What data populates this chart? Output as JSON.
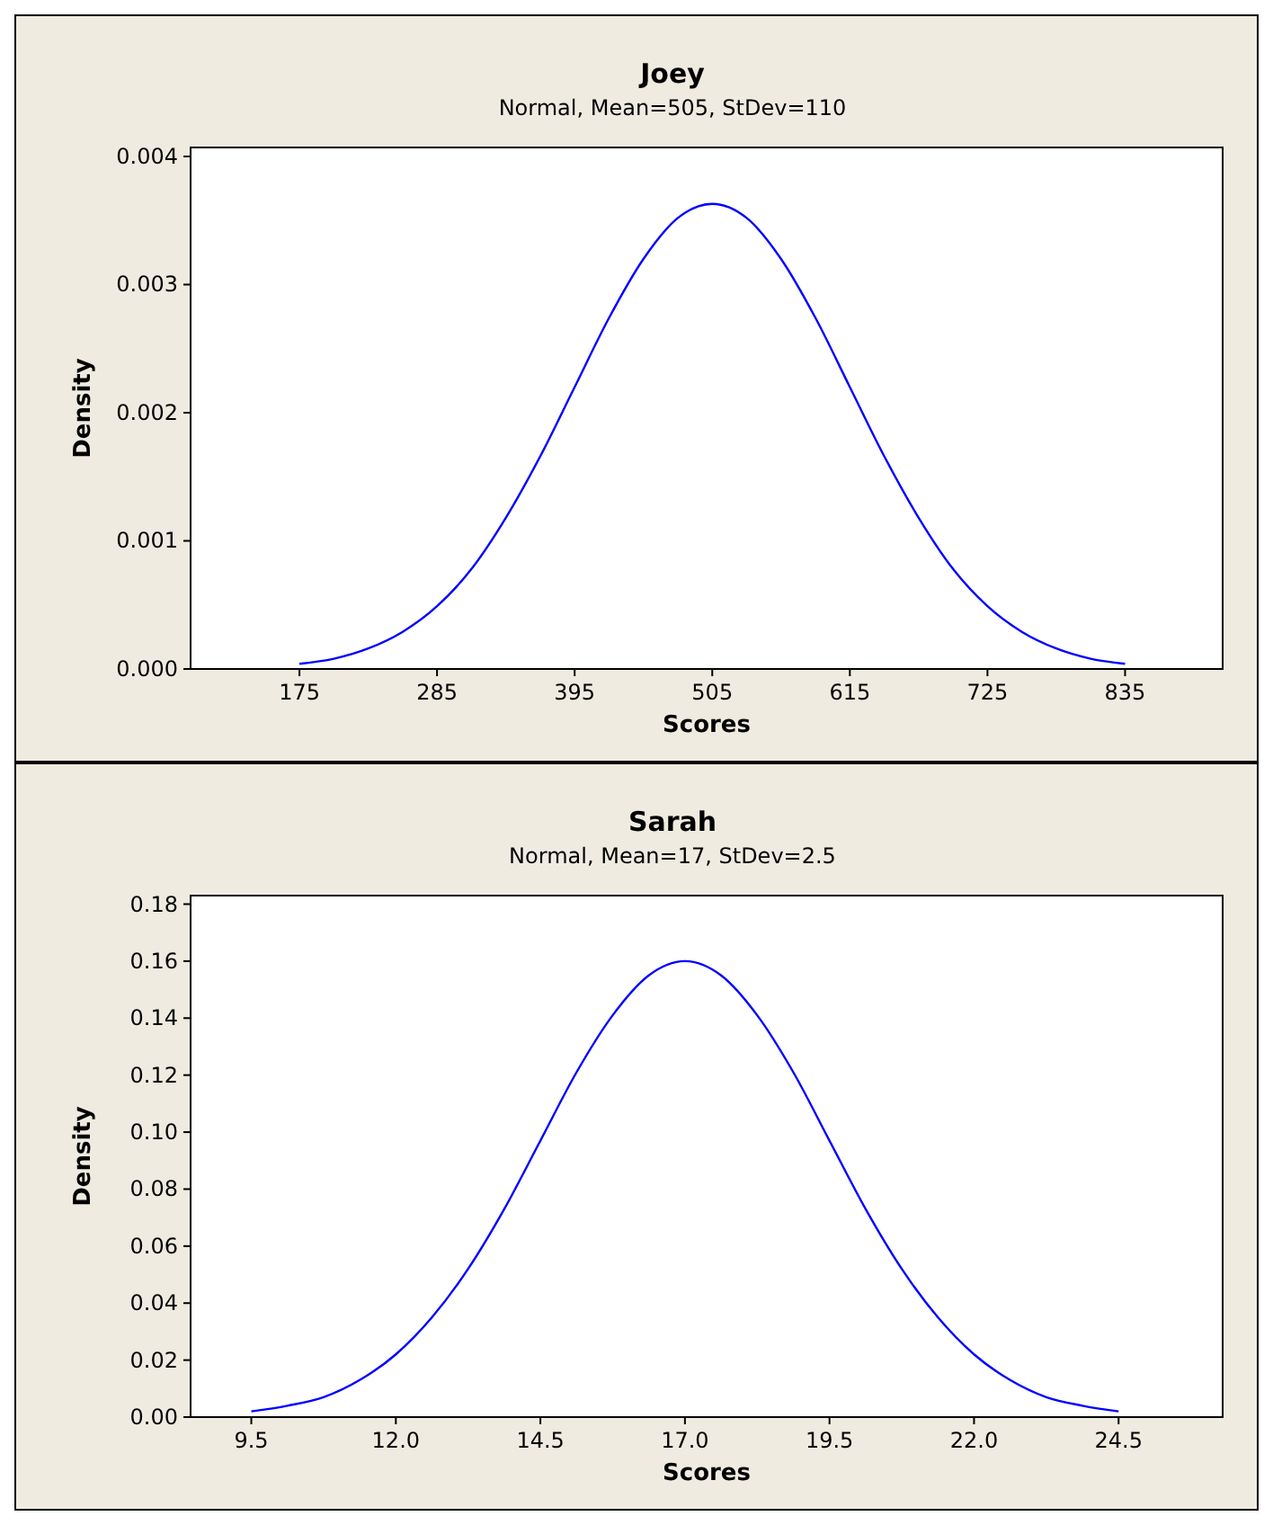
{
  "chart_data": [
    {
      "type": "line",
      "title": "Joey",
      "subtitle": "Normal, Mean=505, StDev=110",
      "xlabel": "Scores",
      "ylabel": "Density",
      "xlim": [
        88,
        913
      ],
      "xticks": [
        175,
        285,
        395,
        505,
        615,
        725,
        835
      ],
      "ylim": [
        0,
        0.00407
      ],
      "yticks": [
        {
          "value": 0,
          "label": "0.000"
        },
        {
          "value": 0.001,
          "label": "0.001"
        },
        {
          "value": 0.002,
          "label": "0.002"
        },
        {
          "value": 0.003,
          "label": "0.003"
        },
        {
          "value": 0.004,
          "label": "0.004"
        }
      ],
      "grid": false,
      "marker": "none",
      "line_style": "solid",
      "series": [
        {
          "color": "#0000ff",
          "x": [
            175,
            202.5,
            230,
            257.5,
            285,
            312.5,
            340,
            367.5,
            395,
            422.5,
            450,
            477.5,
            505,
            532.5,
            560,
            587.5,
            615,
            642.5,
            670,
            697.5,
            725,
            752.5,
            780,
            807.5,
            835
          ],
          "values": [
            4e-05,
            8e-05,
            0.00016,
            0.00029,
            0.00049,
            0.00078,
            0.00118,
            0.00166,
            0.0022,
            0.00274,
            0.0032,
            0.00352,
            0.00363,
            0.00352,
            0.0032,
            0.00274,
            0.0022,
            0.00166,
            0.00118,
            0.00078,
            0.00049,
            0.00029,
            0.00016,
            8e-05,
            4e-05
          ]
        }
      ]
    },
    {
      "type": "line",
      "title": "Sarah",
      "subtitle": "Normal, Mean=17, StDev=2.5",
      "xlabel": "Scores",
      "ylabel": "Density",
      "xlim": [
        8.45,
        26.3
      ],
      "xticks": [
        {
          "value": 9.5,
          "label": "9.5"
        },
        {
          "value": 12,
          "label": "12.0"
        },
        {
          "value": 14.5,
          "label": "14.5"
        },
        {
          "value": 17,
          "label": "17.0"
        },
        {
          "value": 19.5,
          "label": "19.5"
        },
        {
          "value": 22,
          "label": "22.0"
        },
        {
          "value": 24.5,
          "label": "24.5"
        }
      ],
      "ylim": [
        0,
        0.183
      ],
      "yticks": [
        {
          "value": 0,
          "label": "0.00"
        },
        {
          "value": 0.02,
          "label": "0.02"
        },
        {
          "value": 0.04,
          "label": "0.04"
        },
        {
          "value": 0.06,
          "label": "0.06"
        },
        {
          "value": 0.08,
          "label": "0.08"
        },
        {
          "value": 0.1,
          "label": "0.10"
        },
        {
          "value": 0.12,
          "label": "0.12"
        },
        {
          "value": 0.14,
          "label": "0.14"
        },
        {
          "value": 0.16,
          "label": "0.16"
        },
        {
          "value": 0.18,
          "label": "0.18"
        }
      ],
      "grid": false,
      "marker": "none",
      "line_style": "solid",
      "series": [
        {
          "color": "#0000ff",
          "x": [
            9.5,
            10.125,
            10.75,
            11.375,
            12,
            12.625,
            13.25,
            13.875,
            14.5,
            15.125,
            15.75,
            16.375,
            17,
            17.625,
            18.25,
            18.875,
            19.5,
            20.125,
            20.75,
            21.375,
            22,
            22.625,
            23.25,
            23.875,
            24.5
          ],
          "values": [
            0.002,
            0.004,
            0.007,
            0.013,
            0.022,
            0.035,
            0.052,
            0.073,
            0.097,
            0.121,
            0.141,
            0.155,
            0.16,
            0.155,
            0.141,
            0.121,
            0.097,
            0.073,
            0.052,
            0.035,
            0.022,
            0.013,
            0.007,
            0.004,
            0.002
          ]
        }
      ]
    }
  ]
}
